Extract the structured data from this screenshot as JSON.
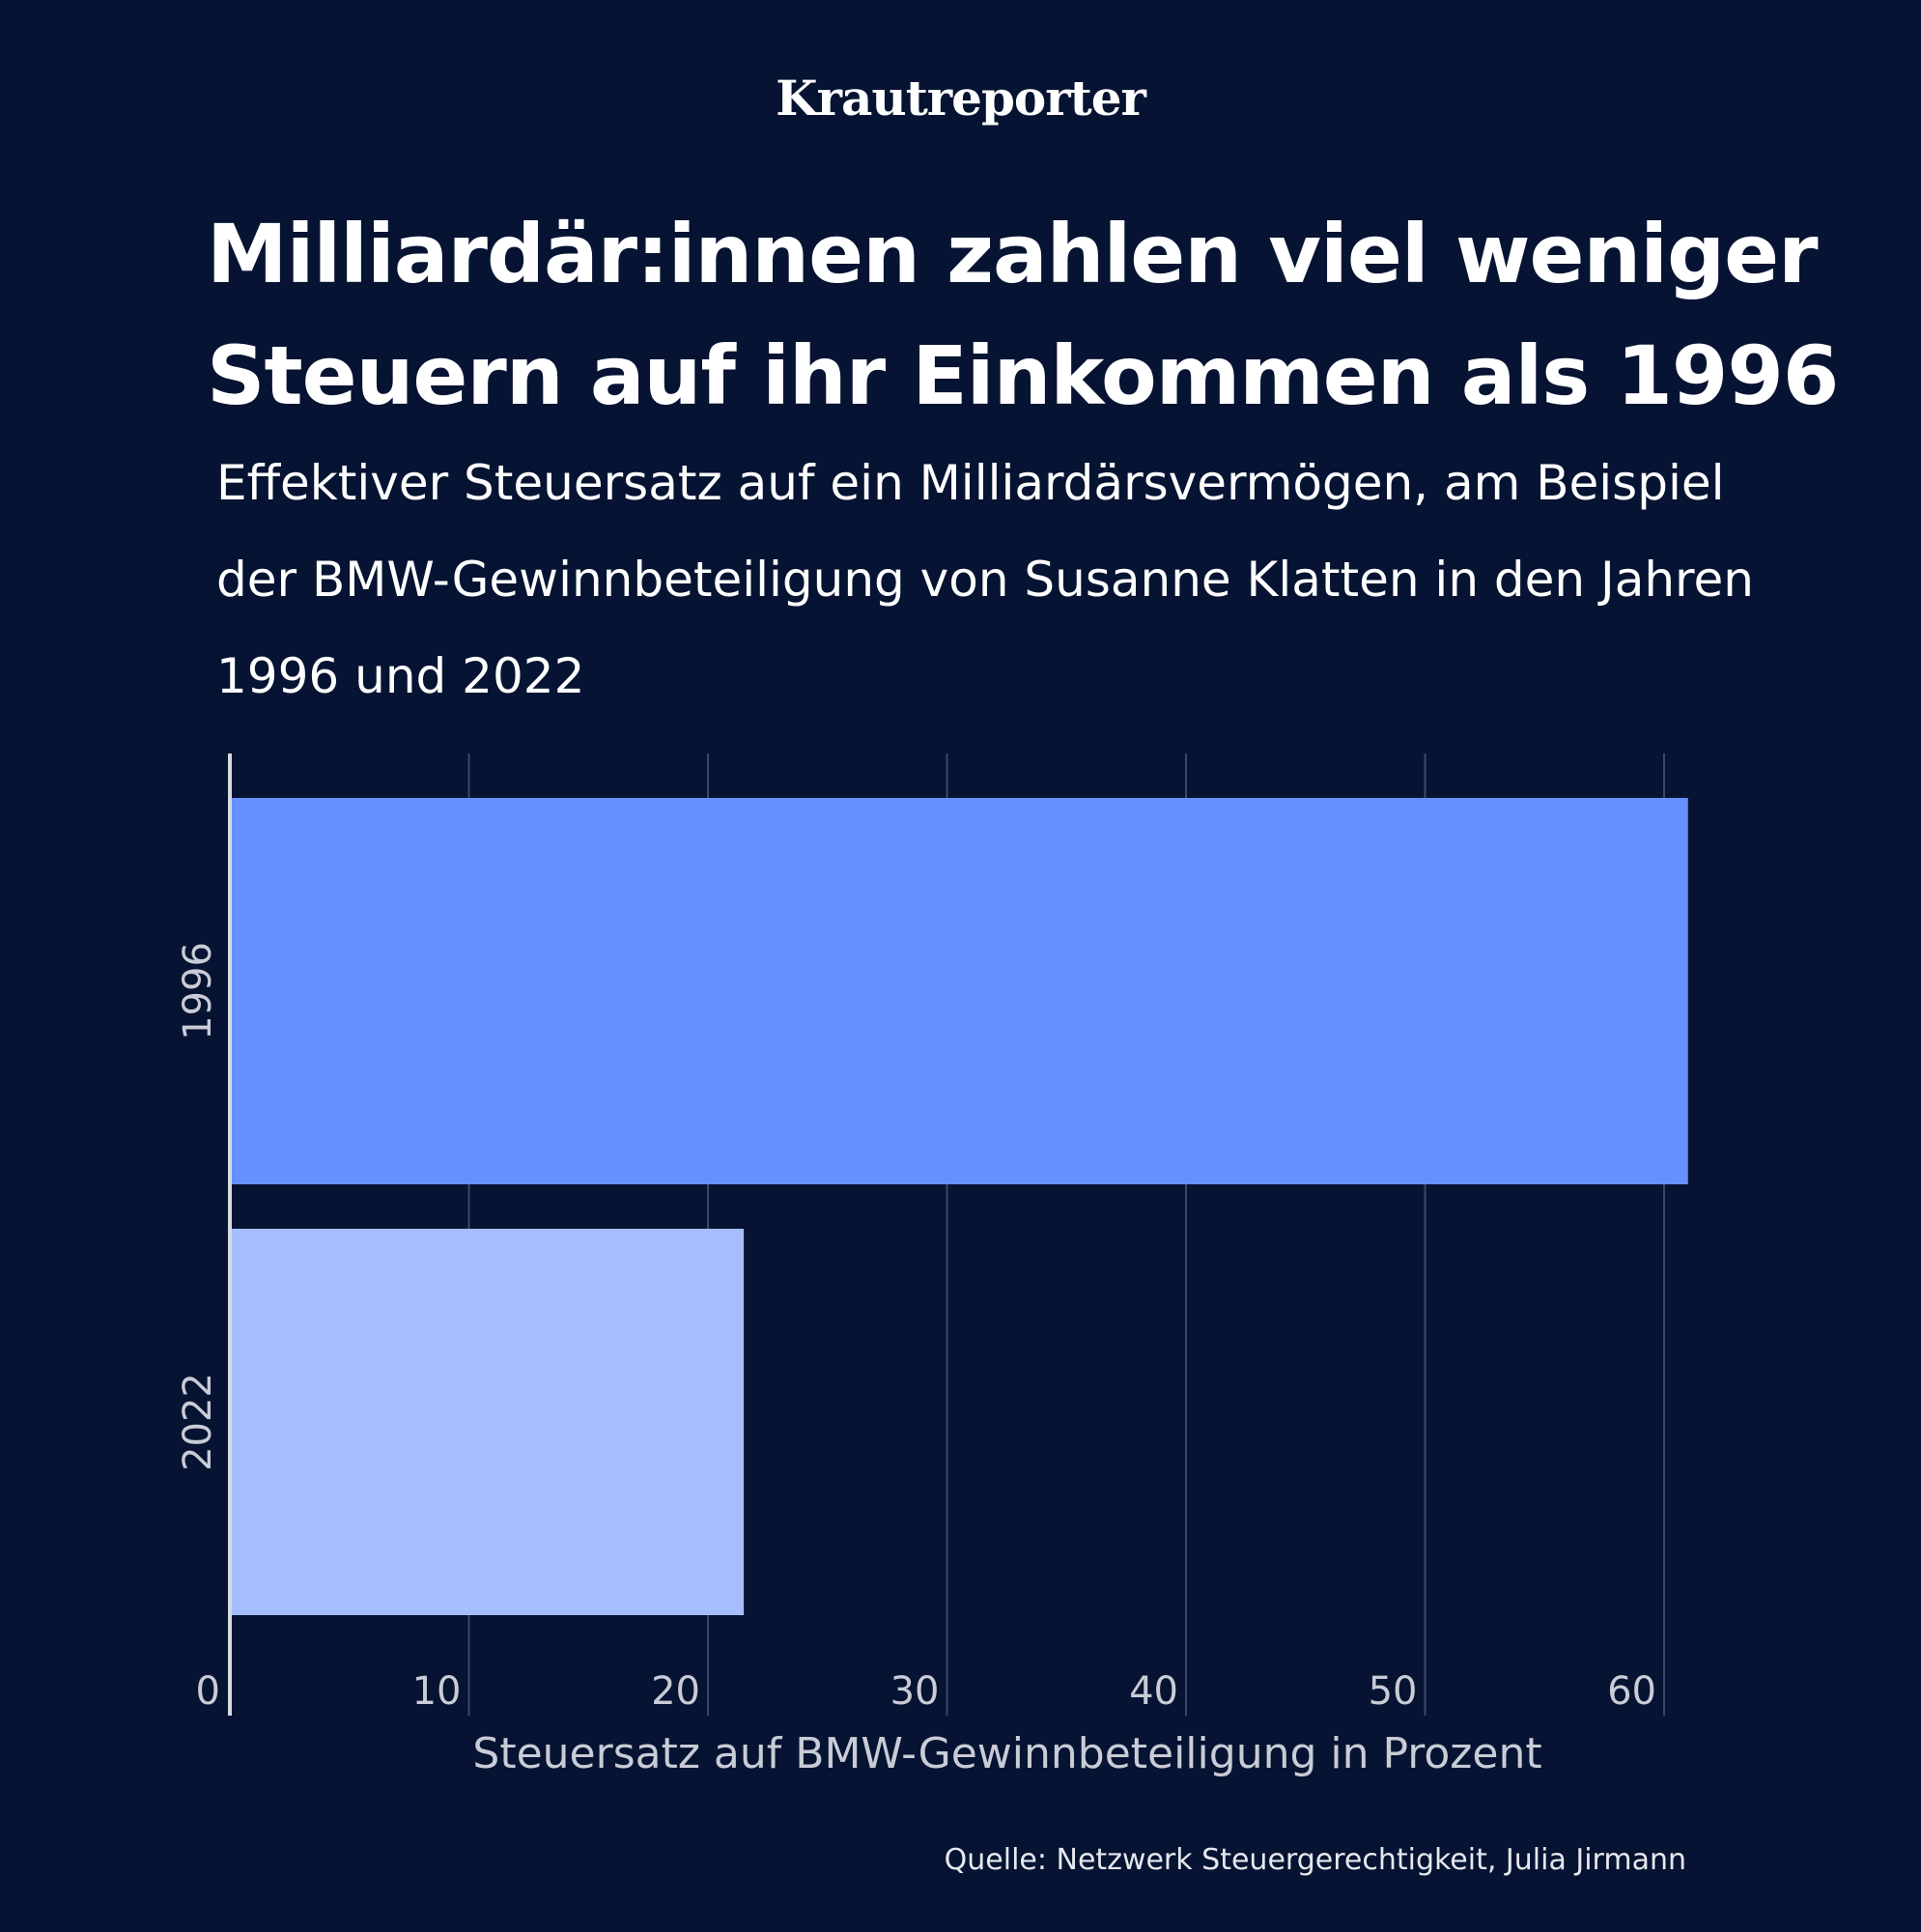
{
  "brand": "Krautreporter",
  "headline": {
    "title": "Milliardär:innen zahlen viel weniger Steuern auf ihr Einkommen als 1996",
    "subtitle": "Effektiver Steuersatz auf ein Milliardärsvermögen, am Beispiel der BMW-Gewinnbeteiligung von Susanne Klatten in den Jahren 1996 und 2022"
  },
  "source": "Quelle: Netzwerk Steuergerechtigkeit, Julia Jirmann",
  "colors": {
    "background": "#061332",
    "bar_1996": "#6690FF",
    "bar_2022": "#A6BDFF",
    "gridline": "#3A4766",
    "axis_text": "#C9CCD6"
  },
  "chart_data": {
    "type": "bar",
    "orientation": "horizontal",
    "title": "Milliardär:innen zahlen viel weniger Steuern auf ihr Einkommen als 1996",
    "categories": [
      "1996",
      "2022"
    ],
    "values": [
      61,
      21.5
    ],
    "xlabel": "Steuersatz auf BMW-Gewinnbeteiligung in Prozent",
    "ylabel": "",
    "xlim": [
      0,
      62
    ],
    "xticks": [
      0,
      10,
      20,
      30,
      40,
      50,
      60
    ],
    "grid": true,
    "legend": "none"
  }
}
